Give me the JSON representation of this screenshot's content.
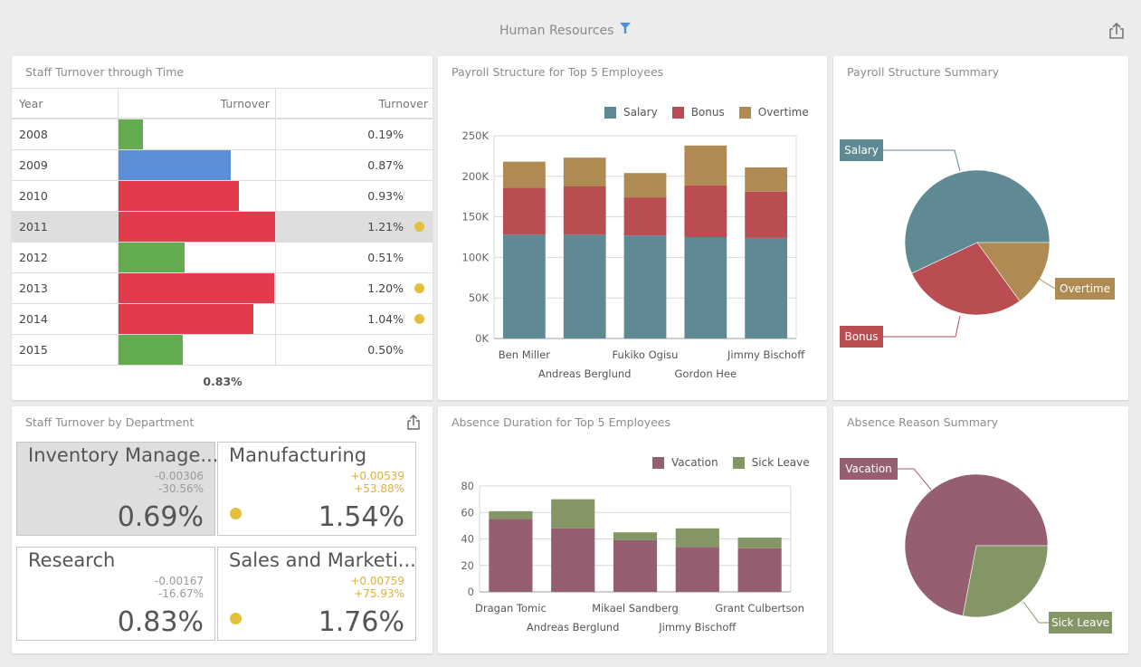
{
  "header": {
    "title": "Human Resources",
    "filter_icon": "filter-icon",
    "export_icon": "export-icon"
  },
  "colors": {
    "salary": "#5f8a93",
    "bonus": "#ba4d51",
    "overtime": "#af8a53",
    "vacation": "#955f71",
    "sick_leave": "#859666",
    "bar_green": "#64ac50",
    "bar_blue": "#5b8fd8",
    "bar_red": "#e23b4b",
    "indicator": "#e2c03b"
  },
  "turnover_grid": {
    "title": "Staff Turnover through Time",
    "columns": [
      "Year",
      "Turnover",
      "Turnover"
    ],
    "rows": [
      {
        "year": "2008",
        "value": 0.19,
        "label": "0.19%",
        "bar_color": "green",
        "indicator": false,
        "selected": false
      },
      {
        "year": "2009",
        "value": 0.87,
        "label": "0.87%",
        "bar_color": "blue",
        "indicator": false,
        "selected": false
      },
      {
        "year": "2010",
        "value": 0.93,
        "label": "0.93%",
        "bar_color": "red",
        "indicator": false,
        "selected": false
      },
      {
        "year": "2011",
        "value": 1.21,
        "label": "1.21%",
        "bar_color": "red",
        "indicator": true,
        "selected": true
      },
      {
        "year": "2012",
        "value": 0.51,
        "label": "0.51%",
        "bar_color": "green",
        "indicator": false,
        "selected": false
      },
      {
        "year": "2013",
        "value": 1.2,
        "label": "1.20%",
        "bar_color": "red",
        "indicator": true,
        "selected": false
      },
      {
        "year": "2014",
        "value": 1.04,
        "label": "1.04%",
        "bar_color": "red",
        "indicator": true,
        "selected": false
      },
      {
        "year": "2015",
        "value": 0.5,
        "label": "0.50%",
        "bar_color": "green",
        "indicator": false,
        "selected": false
      }
    ],
    "total": "0.83%",
    "bar_max": 1.21
  },
  "department_cards": {
    "title": "Staff Turnover by Department",
    "export_icon": "export-icon",
    "cards": [
      {
        "name": "Inventory Manage...",
        "delta_abs": "-0.00306",
        "delta_pct": "-30.56%",
        "value": "0.69%",
        "trend": "neg",
        "indicator": false,
        "selected": true
      },
      {
        "name": "Manufacturing",
        "delta_abs": "+0.00539",
        "delta_pct": "+53.88%",
        "value": "1.54%",
        "trend": "pos",
        "indicator": true,
        "selected": false
      },
      {
        "name": "Research",
        "delta_abs": "-0.00167",
        "delta_pct": "-16.67%",
        "value": "0.83%",
        "trend": "neg",
        "indicator": false,
        "selected": false
      },
      {
        "name": "Sales and Marketi...",
        "delta_abs": "+0.00759",
        "delta_pct": "+75.93%",
        "value": "1.76%",
        "trend": "pos",
        "indicator": true,
        "selected": false
      }
    ]
  },
  "chart_data": [
    {
      "id": "payroll",
      "type": "bar",
      "stacked": true,
      "title": "Payroll Structure for Top 5 Employees",
      "categories": [
        "Ben Miller",
        "Andreas Berglund",
        "Fukiko Ogisu",
        "Gordon Hee",
        "Jimmy Bischoff"
      ],
      "series": [
        {
          "name": "Salary",
          "values": [
            128000,
            128000,
            127000,
            125000,
            124000
          ]
        },
        {
          "name": "Bonus",
          "values": [
            58000,
            59500,
            47000,
            64000,
            57000
          ]
        },
        {
          "name": "Overtime",
          "values": [
            32000,
            35500,
            30000,
            49000,
            30000
          ]
        }
      ],
      "ylim": [
        0,
        250000
      ],
      "yticks": [
        "0K",
        "50K",
        "100K",
        "150K",
        "200K",
        "250K"
      ],
      "ytick_values": [
        0,
        50000,
        100000,
        150000,
        200000,
        250000
      ],
      "xlabel": "",
      "ylabel": "",
      "grid": true,
      "legend": "top-right"
    },
    {
      "id": "payroll_pie",
      "type": "pie",
      "title": "Payroll Structure Summary",
      "labels": [
        "Salary",
        "Bonus",
        "Overtime"
      ],
      "values": [
        57,
        28,
        15
      ]
    },
    {
      "id": "absence",
      "type": "bar",
      "stacked": true,
      "title": "Absence Duration for Top 5 Employees",
      "categories": [
        "Dragan Tomic",
        "Andreas Berglund",
        "Mikael Sandberg",
        "Jimmy Bischoff",
        "Grant Culbertson"
      ],
      "series": [
        {
          "name": "Vacation",
          "values": [
            55,
            48,
            39,
            34,
            33
          ]
        },
        {
          "name": "Sick Leave",
          "values": [
            6,
            22,
            6,
            14,
            8
          ]
        }
      ],
      "ylim": [
        0,
        80
      ],
      "yticks": [
        "0",
        "20",
        "40",
        "60",
        "80"
      ],
      "ytick_values": [
        0,
        20,
        40,
        60,
        80
      ],
      "xlabel": "",
      "ylabel": "",
      "grid": true,
      "legend": "top-right"
    },
    {
      "id": "absence_pie",
      "type": "pie",
      "title": "Absence Reason Summary",
      "labels": [
        "Vacation",
        "Sick Leave"
      ],
      "values": [
        72,
        28
      ]
    }
  ]
}
